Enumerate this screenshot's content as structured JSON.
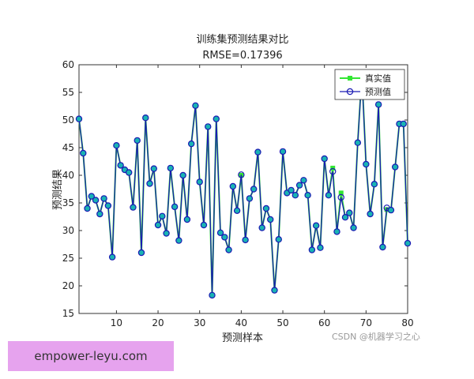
{
  "chart_data": {
    "type": "line",
    "title": "训练集预测结果对比",
    "subtitle": "RMSE=0.17396",
    "xlabel": "预测样本",
    "ylabel": "预测结果",
    "xlim": [
      1,
      80
    ],
    "ylim": [
      15,
      60
    ],
    "xticks": [
      10,
      20,
      30,
      40,
      50,
      60,
      70,
      80
    ],
    "yticks": [
      15,
      20,
      25,
      30,
      35,
      40,
      45,
      50,
      55,
      60
    ],
    "grid": false,
    "legend_position": "top-right",
    "x": [
      1,
      2,
      3,
      4,
      5,
      6,
      7,
      8,
      9,
      10,
      11,
      12,
      13,
      14,
      15,
      16,
      17,
      18,
      19,
      20,
      21,
      22,
      23,
      24,
      25,
      26,
      27,
      28,
      29,
      30,
      31,
      32,
      33,
      34,
      35,
      36,
      37,
      38,
      39,
      40,
      41,
      42,
      43,
      44,
      45,
      46,
      47,
      48,
      49,
      50,
      51,
      52,
      53,
      54,
      55,
      56,
      57,
      58,
      59,
      60,
      61,
      62,
      63,
      64,
      65,
      66,
      67,
      68,
      69,
      70,
      71,
      72,
      73,
      74,
      75,
      76,
      77,
      78,
      79,
      80
    ],
    "series": [
      {
        "name": "真实值",
        "color": "#33e633",
        "marker": "square",
        "values": [
          50.2,
          44.0,
          34.0,
          36.2,
          35.5,
          33.0,
          35.8,
          34.5,
          25.2,
          45.4,
          41.8,
          41.0,
          40.5,
          34.2,
          46.3,
          26.0,
          50.4,
          38.5,
          41.2,
          31.0,
          32.6,
          29.5,
          41.3,
          34.3,
          28.2,
          40.0,
          32.0,
          45.7,
          52.6,
          38.8,
          31.0,
          48.8,
          18.3,
          50.2,
          29.6,
          28.8,
          26.5,
          38.0,
          33.6,
          40.0,
          28.3,
          35.8,
          37.5,
          44.2,
          30.5,
          34.0,
          32.0,
          19.2,
          28.4,
          44.3,
          36.8,
          37.3,
          36.4,
          38.2,
          39.1,
          36.4,
          26.5,
          30.9,
          26.9,
          43.0,
          36.4,
          41.3,
          29.8,
          36.8,
          32.4,
          33.2,
          30.5,
          45.9,
          58.5,
          42.0,
          33.0,
          38.4,
          52.8,
          27.0,
          33.8,
          33.7,
          41.5,
          49.3,
          49.3,
          27.7
        ]
      },
      {
        "name": "预测值",
        "color": "#1a1ab3",
        "marker": "circle",
        "values": [
          50.2,
          44.0,
          34.0,
          36.2,
          35.5,
          33.0,
          35.8,
          34.5,
          25.2,
          45.4,
          41.8,
          41.0,
          40.5,
          34.2,
          46.3,
          26.0,
          50.4,
          38.5,
          41.2,
          31.0,
          32.6,
          29.5,
          41.3,
          34.3,
          28.2,
          40.0,
          32.0,
          45.7,
          52.6,
          38.8,
          31.0,
          48.8,
          18.3,
          50.2,
          29.6,
          28.8,
          26.5,
          38.0,
          33.6,
          40.1,
          28.3,
          35.8,
          37.5,
          44.2,
          30.5,
          34.0,
          32.0,
          19.2,
          28.4,
          44.3,
          36.8,
          37.3,
          36.4,
          38.2,
          39.1,
          36.4,
          26.5,
          30.9,
          26.9,
          43.0,
          36.4,
          40.7,
          29.8,
          36.0,
          32.4,
          33.2,
          30.5,
          45.9,
          58.1,
          42.0,
          33.0,
          38.4,
          52.8,
          27.0,
          34.1,
          33.7,
          41.5,
          49.3,
          49.3,
          27.7
        ]
      }
    ]
  },
  "watermark": "empower-leyu.com",
  "credit": "CSDN @机器学习之心"
}
